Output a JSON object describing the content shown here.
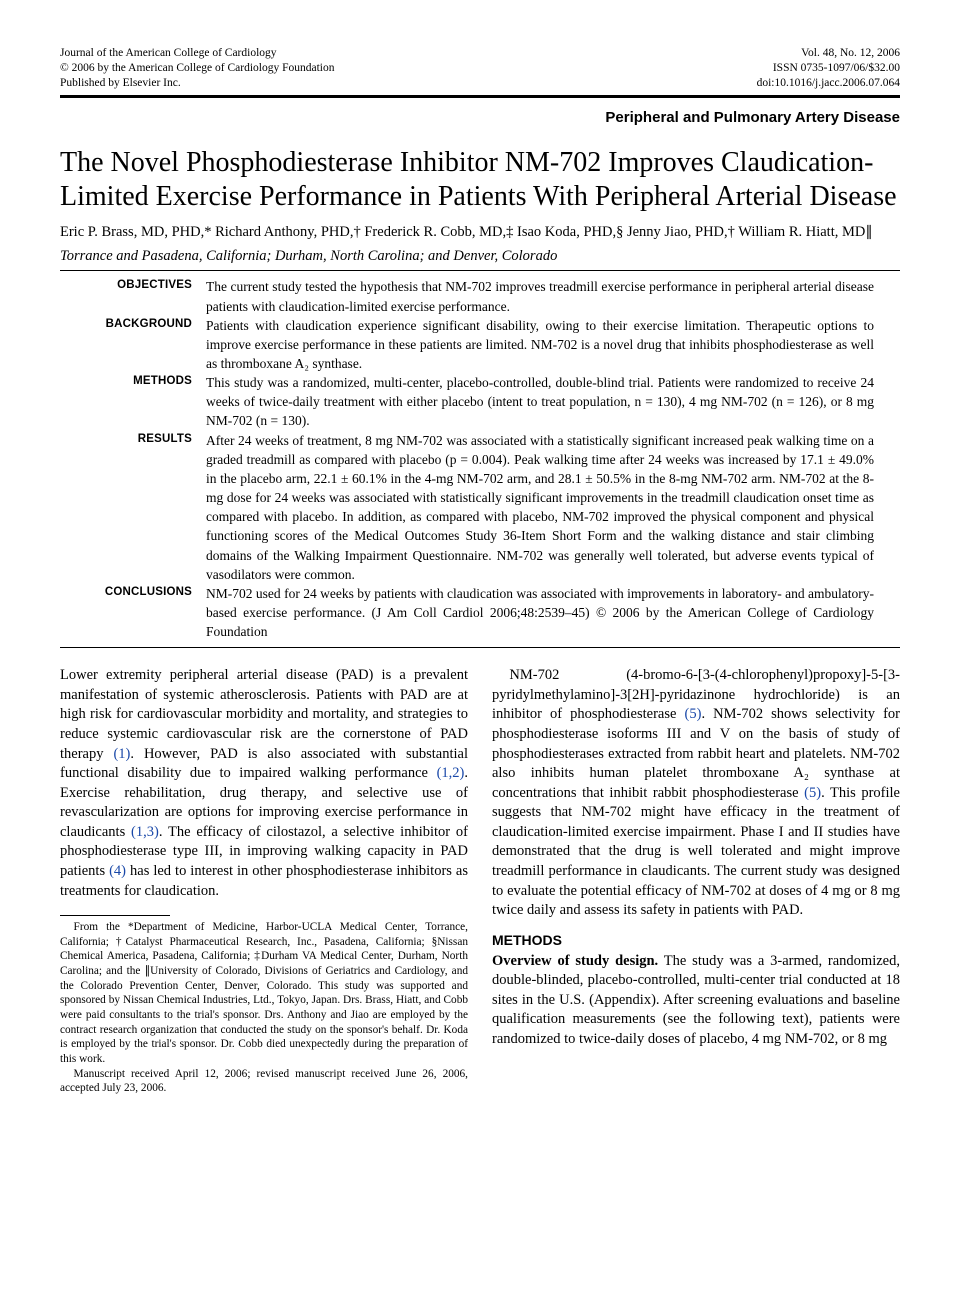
{
  "header": {
    "left_line1": "Journal of the American College of Cardiology",
    "left_line2": "© 2006 by the American College of Cardiology Foundation",
    "left_line3": "Published by Elsevier Inc.",
    "right_line1": "Vol. 48, No. 12, 2006",
    "right_line2": "ISSN 0735-1097/06/$32.00",
    "right_line3": "doi:10.1016/j.jacc.2006.07.064"
  },
  "section_tag": "Peripheral and Pulmonary Artery Disease",
  "title": "The Novel Phosphodiesterase Inhibitor NM-702 Improves Claudication-Limited Exercise Performance in Patients With Peripheral Arterial Disease",
  "authors": "Eric P. Brass, MD, PHD,* Richard Anthony, PHD,† Frederick R. Cobb, MD,‡ Isao Koda, PHD,§ Jenny Jiao, PHD,† William R. Hiatt, MD∥",
  "affil": "Torrance and Pasadena, California; Durham, North Carolina; and Denver, Colorado",
  "abstract": {
    "labels": {
      "objectives": "OBJECTIVES",
      "background": "BACKGROUND",
      "methods": "METHODS",
      "results": "RESULTS",
      "conclusions": "CONCLUSIONS"
    },
    "objectives": "The current study tested the hypothesis that NM-702 improves treadmill exercise performance in peripheral arterial disease patients with claudication-limited exercise performance.",
    "background": "Patients with claudication experience significant disability, owing to their exercise limitation. Therapeutic options to improve exercise performance in these patients are limited. NM-702 is a novel drug that inhibits phosphodiesterase as well as thromboxane A₂ synthase.",
    "methods": "This study was a randomized, multi-center, placebo-controlled, double-blind trial. Patients were randomized to receive 24 weeks of twice-daily treatment with either placebo (intent to treat population, n = 130), 4 mg NM-702 (n = 126), or 8 mg NM-702 (n = 130).",
    "results": "After 24 weeks of treatment, 8 mg NM-702 was associated with a statistically significant increased peak walking time on a graded treadmill as compared with placebo (p = 0.004). Peak walking time after 24 weeks was increased by 17.1 ± 49.0% in the placebo arm, 22.1 ± 60.1% in the 4-mg NM-702 arm, and 28.1 ± 50.5% in the 8-mg NM-702 arm. NM-702 at the 8-mg dose for 24 weeks was associated with statistically significant improvements in the treadmill claudication onset time as compared with placebo. In addition, as compared with placebo, NM-702 improved the physical component and physical functioning scores of the Medical Outcomes Study 36-Item Short Form and the walking distance and stair climbing domains of the Walking Impairment Questionnaire. NM-702 was generally well tolerated, but adverse events typical of vasodilators were common.",
    "conclusions": "NM-702 used for 24 weeks by patients with claudication was associated with improvements in laboratory- and ambulatory-based exercise performance.   (J Am Coll Cardiol 2006;48:2539–45) © 2006 by the American College of Cardiology Foundation"
  },
  "left_col": {
    "p1a": "Lower extremity peripheral arterial disease (PAD) is a prevalent manifestation of systemic atherosclerosis. Patients with PAD are at high risk for cardiovascular morbidity and mortality, and strategies to reduce systemic cardiovascular risk are the cornerstone of PAD therapy ",
    "r1": "(1)",
    "p1b": ". However, PAD is also associated with substantial functional disability due to impaired walking performance ",
    "r2": "(1,2)",
    "p1c": ". Exercise rehabilitation, drug therapy, and selective use of revascularization are options for improving exercise performance in claudicants ",
    "r3": "(1,3)",
    "p1d": ". The efficacy of cilostazol, a selective inhibitor of phosphodiesterase type III, in improving walking capacity in PAD patients ",
    "r4": "(4)",
    "p1e": " has led to interest in other phosphodiesterase inhibitors as treatments for claudication.",
    "footnote1": "From the *Department of Medicine, Harbor-UCLA Medical Center, Torrance, California; †Catalyst Pharmaceutical Research, Inc., Pasadena, California; §Nissan Chemical America, Pasadena, California; ‡Durham VA Medical Center, Durham, North Carolina; and the ∥University of Colorado, Divisions of Geriatrics and Cardiology, and the Colorado Prevention Center, Denver, Colorado. This study was supported and sponsored by Nissan Chemical Industries, Ltd., Tokyo, Japan. Drs. Brass, Hiatt, and Cobb were paid consultants to the trial's sponsor. Drs. Anthony and Jiao are employed by the contract research organization that conducted the study on the sponsor's behalf. Dr. Koda is employed by the trial's sponsor. Dr. Cobb died unexpectedly during the preparation of this work.",
    "footnote2": "Manuscript received April 12, 2006; revised manuscript received June 26, 2006, accepted July 23, 2006."
  },
  "right_col": {
    "p1a": "NM-702 (4-bromo-6-[3-(4-chlorophenyl)propoxy]-5-[3-pyridylmethylamino]-3[2H]-pyridazinone hydrochloride) is an inhibitor of phosphodiesterase ",
    "r5a": "(5)",
    "p1b": ". NM-702 shows selectivity for phosphodiesterase isoforms III and V on the basis of study of phosphodiesterases extracted from rabbit heart and platelets. NM-702 also inhibits human platelet thromboxane A₂ synthase at concentrations that inhibit rabbit phosphodiesterase ",
    "r5b": "(5)",
    "p1c": ". This profile suggests that NM-702 might have efficacy in the treatment of claudication-limited exercise impairment. Phase I and II studies have demonstrated that the drug is well tolerated and might improve treadmill performance in claudicants. The current study was designed to evaluate the potential efficacy of NM-702 at doses of 4 mg or 8 mg twice daily and assess its safety in patients with PAD.",
    "methods_head": "METHODS",
    "p2_lead": "Overview of study design.",
    "p2_body": " The study was a 3-armed, randomized, double-blinded, placebo-controlled, multi-center trial conducted at 18 sites in the U.S. (Appendix). After screening evaluations and baseline qualification measurements (see the following text), patients were randomized to twice-daily doses of placebo, 4 mg NM-702, or 8 mg"
  },
  "colors": {
    "link": "#1847a8",
    "text": "#000000",
    "bg": "#ffffff"
  }
}
